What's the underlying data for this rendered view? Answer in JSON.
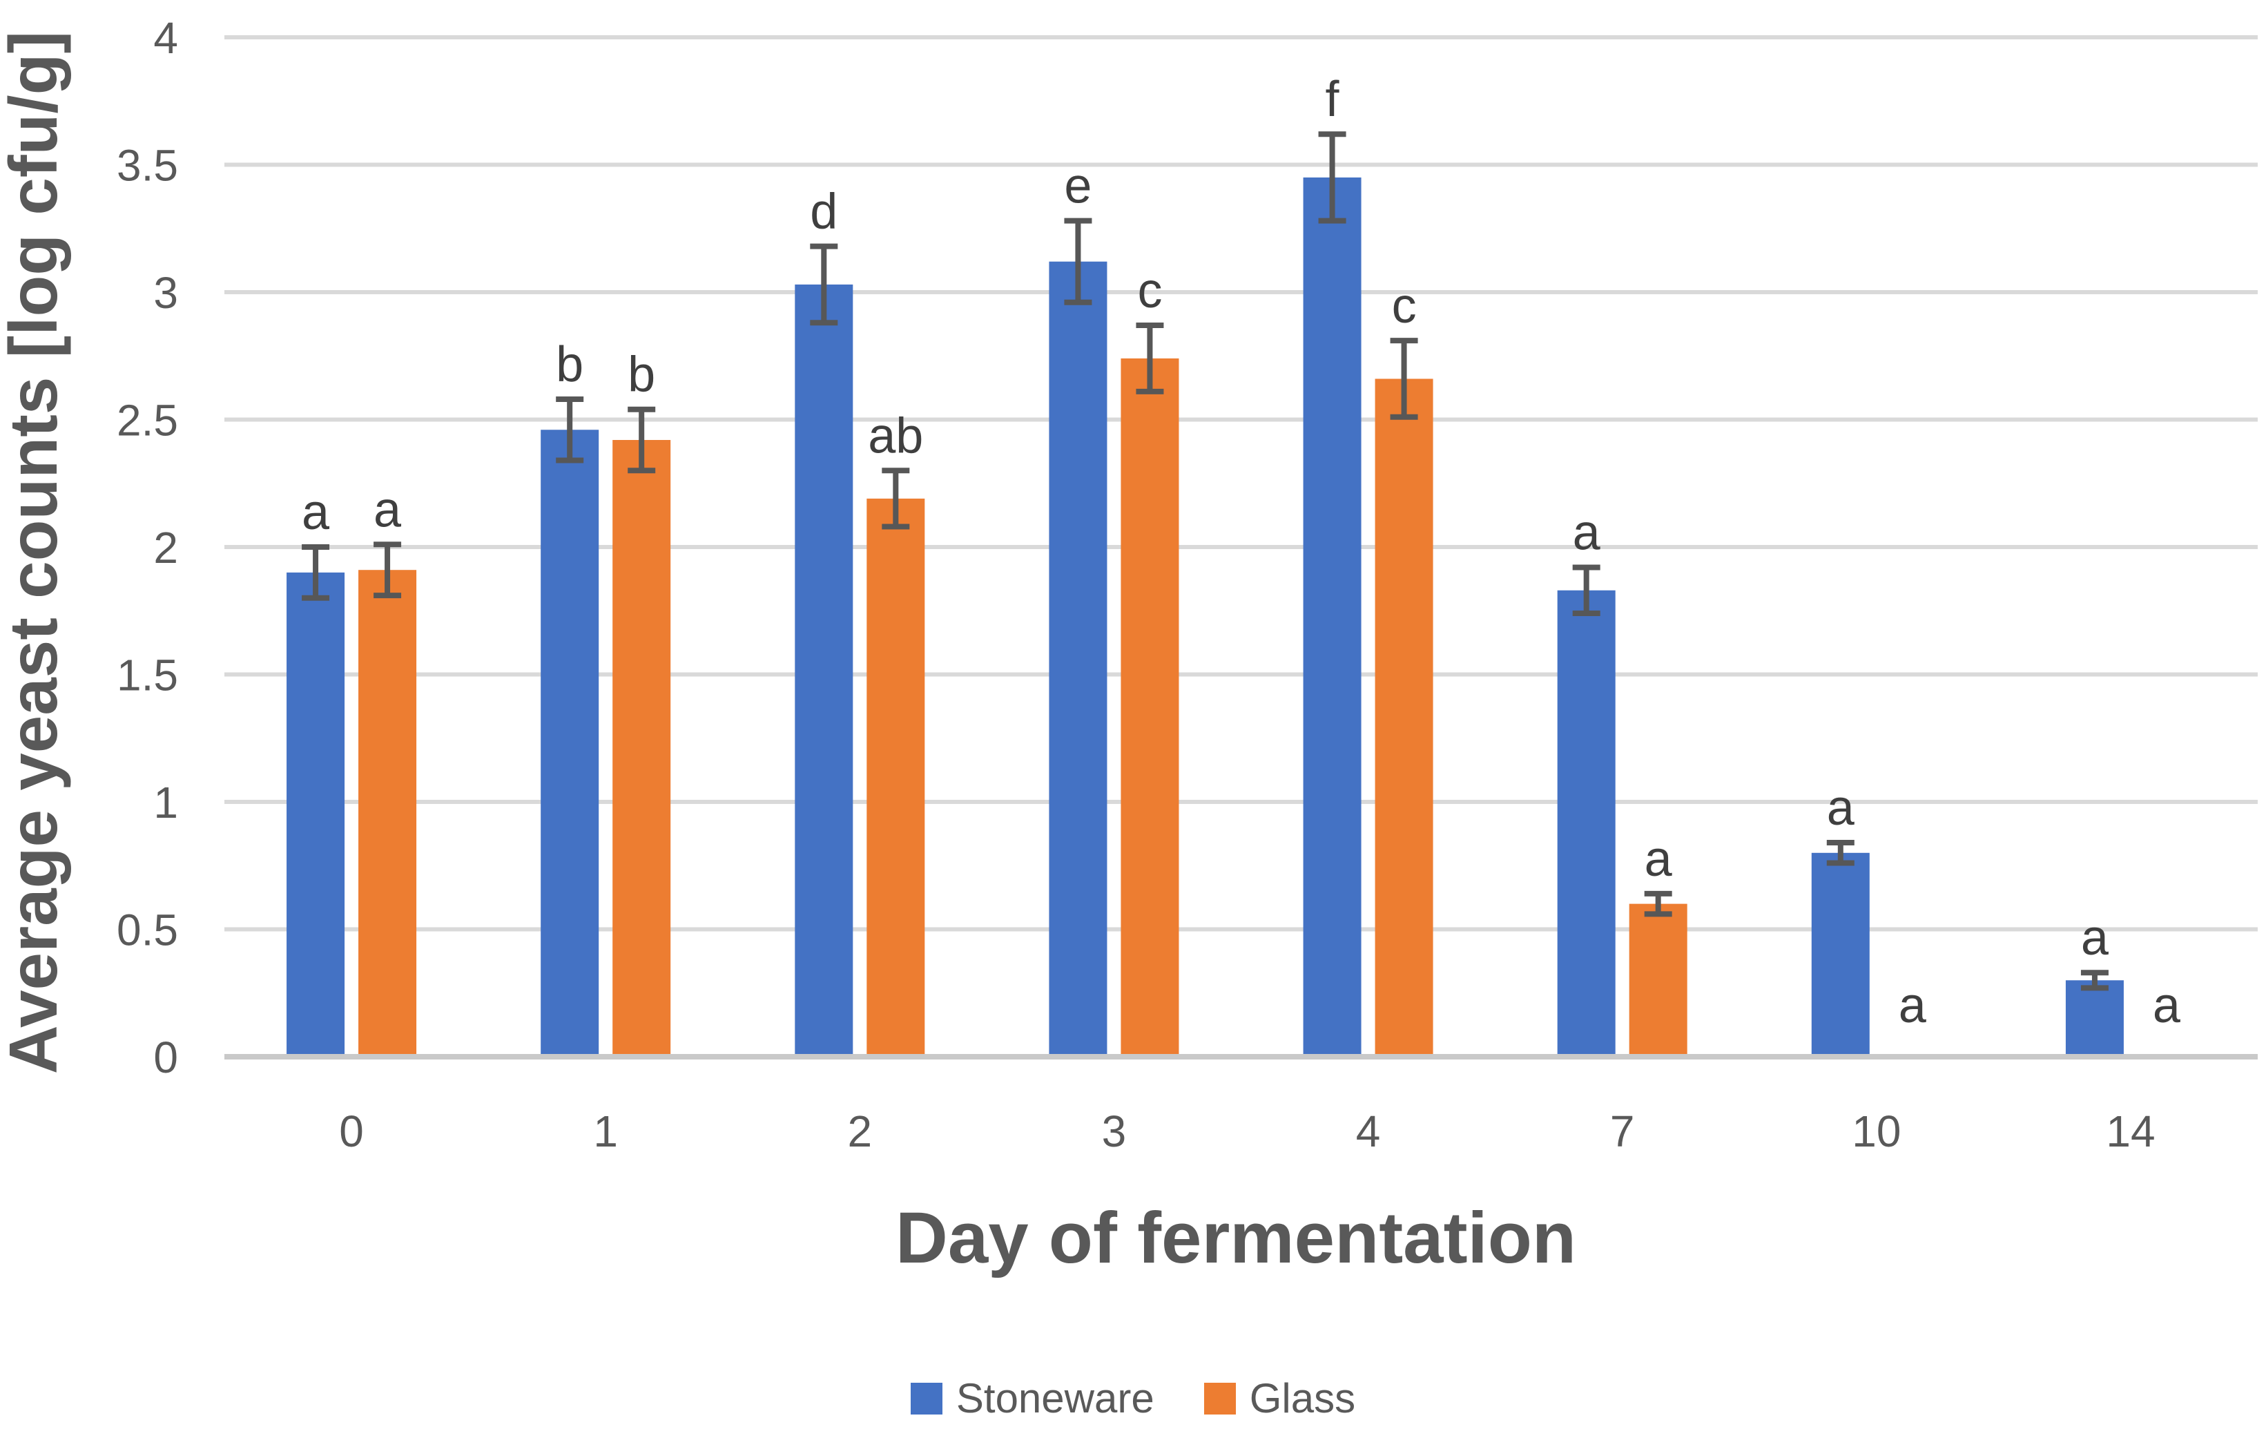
{
  "chart_data": {
    "type": "bar",
    "title": "",
    "xlabel": "Day of fermentation",
    "ylabel": "Average yeast counts [log cfu/g]",
    "categories": [
      "0",
      "1",
      "2",
      "3",
      "4",
      "7",
      "10",
      "14"
    ],
    "ylim": [
      0,
      4
    ],
    "ytick_step": 0.5,
    "ytick_labels": [
      "0",
      "0.5",
      "1",
      "1.5",
      "2",
      "2.5",
      "3",
      "3.5",
      "4"
    ],
    "grid": true,
    "legend_position": "bottom-center",
    "series": [
      {
        "name": "Stoneware",
        "color": "#4472C4",
        "values": [
          1.9,
          2.46,
          3.03,
          3.12,
          3.45,
          1.83,
          0.8,
          0.3
        ],
        "errors": [
          0.1,
          0.12,
          0.15,
          0.16,
          0.17,
          0.09,
          0.04,
          0.03
        ],
        "sig_letters": [
          "a",
          "b",
          "d",
          "e",
          "f",
          "a",
          "a",
          "a"
        ]
      },
      {
        "name": "Glass",
        "color": "#ED7D31",
        "values": [
          1.91,
          2.42,
          2.19,
          2.74,
          2.66,
          0.6,
          0,
          0
        ],
        "errors": [
          0.1,
          0.12,
          0.11,
          0.13,
          0.15,
          0.04,
          0,
          0
        ],
        "sig_letters": [
          "a",
          "b",
          "ab",
          "c",
          "c",
          "a",
          "a",
          "a"
        ]
      }
    ],
    "colors": {
      "background": "#FFFFFF",
      "gridline": "#D9D9D9",
      "baseline": "#C9C9C9",
      "error_bar": "#575757",
      "axis_text": "#595959",
      "sig_letter_text": "#3F3F3F"
    }
  }
}
